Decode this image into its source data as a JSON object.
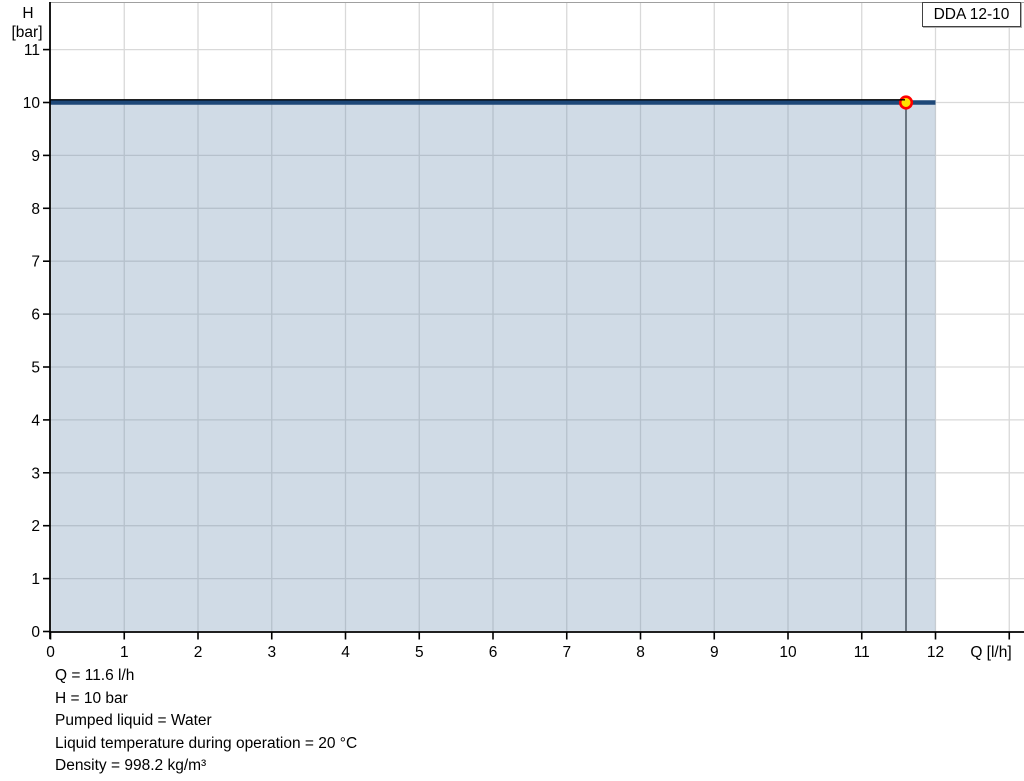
{
  "legend": {
    "label": "DDA 12-10"
  },
  "info": {
    "lines": [
      "Q = 11.6 l/h",
      "H = 10 bar",
      "Pumped liquid = Water",
      "Liquid temperature during operation = 20 °C",
      "Density = 998.2 kg/m³"
    ]
  },
  "chart_data": {
    "type": "line",
    "title": "",
    "xlabel": "Q [l/h]",
    "ylabel": "H [bar]",
    "xlim": [
      0,
      13.2
    ],
    "ylim": [
      0,
      11.9
    ],
    "grid": true,
    "legend_position": "top-right",
    "x_ticks": [
      0,
      1,
      2,
      3,
      4,
      5,
      6,
      7,
      8,
      9,
      10,
      11,
      12
    ],
    "x_ticks_unlabeled": [
      13
    ],
    "y_ticks": [
      0,
      1,
      2,
      3,
      4,
      5,
      6,
      7,
      8,
      9,
      10,
      11
    ],
    "series": [
      {
        "name": "DDA 12-10 curve",
        "x": [
          0,
          12
        ],
        "y": [
          10,
          10
        ],
        "color": "#1e4878",
        "line_width": 4.5,
        "area_fill": "rgba(108,142,178,0.32)"
      },
      {
        "name": "operating range line",
        "x": [
          0,
          11.6
        ],
        "y": [
          10,
          10
        ],
        "color": "#000000",
        "line_width": 1.4
      }
    ],
    "operating_point": {
      "q": 11.6,
      "h": 10,
      "marker_fill": "#ffe400",
      "marker_stroke": "#ff0000",
      "dropline_color": "#5f6b76"
    },
    "colors": {
      "grid": "#d9d9d9",
      "axis": "#000000",
      "plot_top_border": "#a0a0a0"
    }
  }
}
